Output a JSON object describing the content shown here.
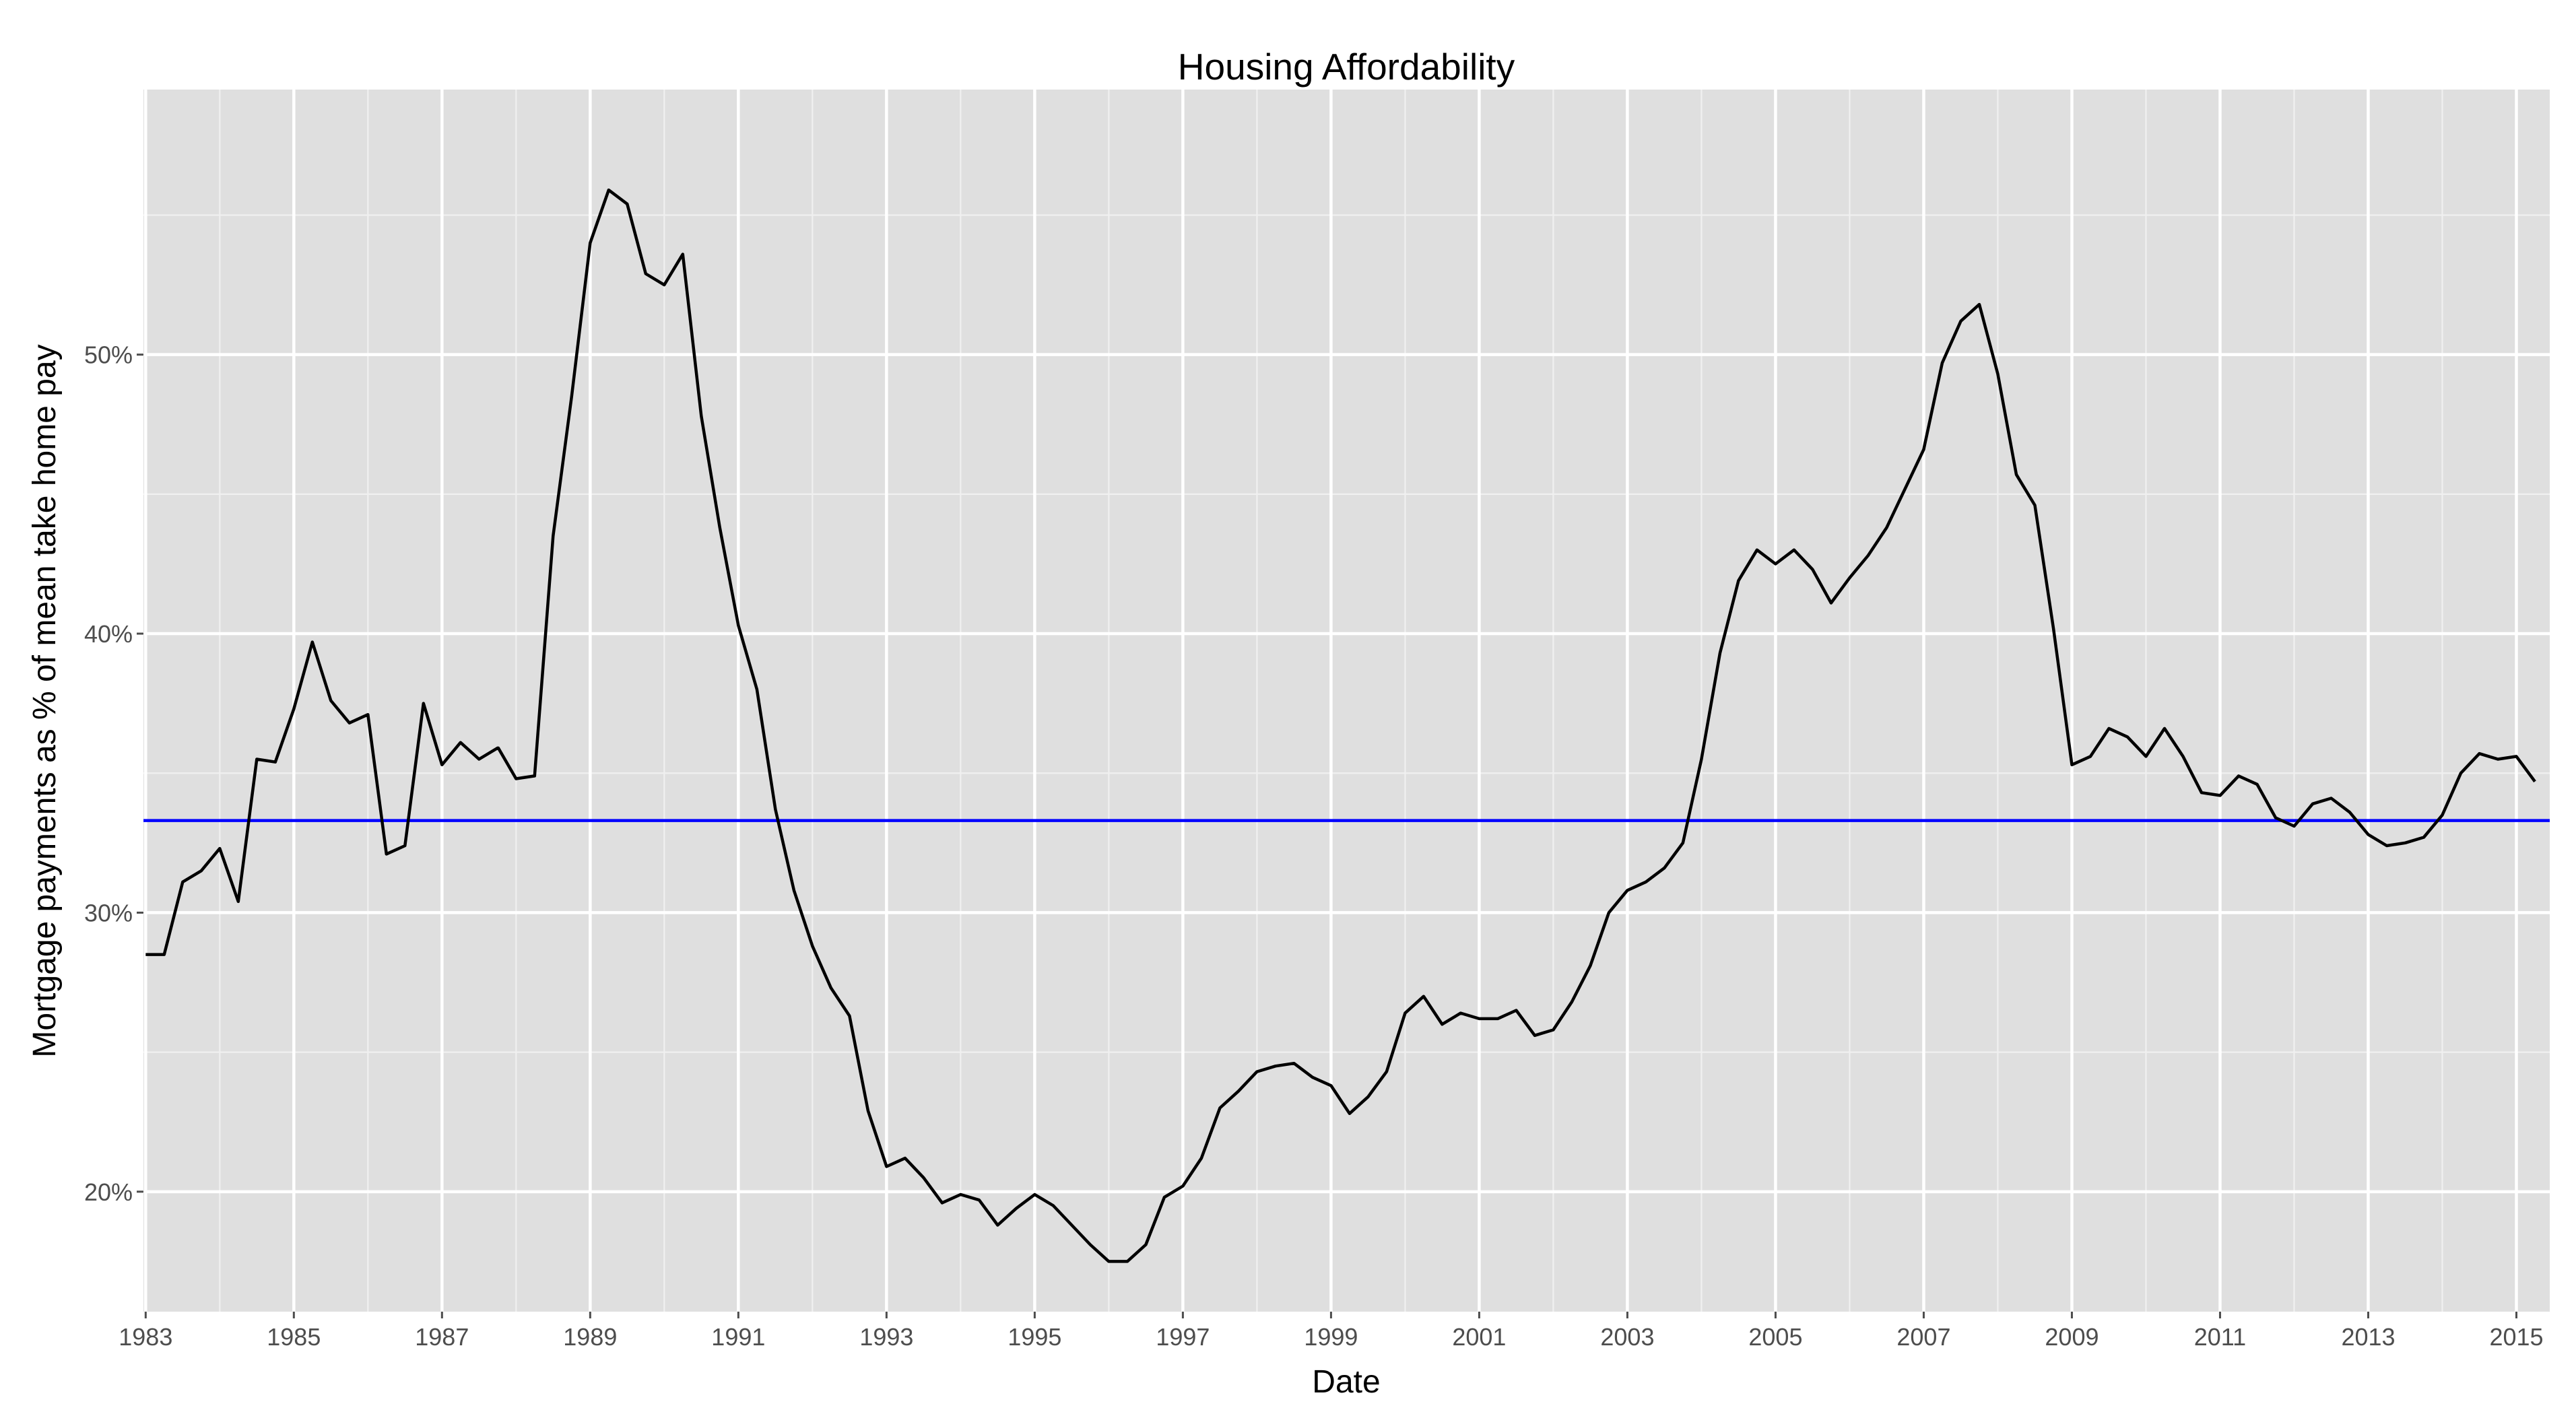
{
  "chart_data": {
    "type": "line",
    "title": "Housing Affordability",
    "xlabel": "Date",
    "ylabel": "Mortgage payments as % of mean take home pay",
    "xlim": [
      1982.97,
      2015.45
    ],
    "ylim": [
      15.7,
      59.5
    ],
    "x_ticks": [
      1983,
      1985,
      1987,
      1989,
      1991,
      1993,
      1995,
      1997,
      1999,
      2001,
      2003,
      2005,
      2007,
      2009,
      2011,
      2013,
      2015
    ],
    "y_ticks": [
      20,
      30,
      40,
      50
    ],
    "y_tick_labels": [
      "20%",
      "30%",
      "40%",
      "50%"
    ],
    "y_minor_ticks": [
      25,
      35,
      45,
      55
    ],
    "grid": true,
    "colors": {
      "panel_bg": "#dfdfdf",
      "series": "#000000",
      "reference_line": "#0000ff"
    },
    "reference_line": {
      "y": 33.3
    },
    "series": [
      {
        "x": [
          1983.0,
          1983.25,
          1983.5,
          1983.75,
          1984.0,
          1984.25,
          1984.5,
          1984.75,
          1985.0,
          1985.25,
          1985.5,
          1985.75,
          1986.0,
          1986.25,
          1986.5,
          1986.75,
          1987.0,
          1987.25,
          1987.5,
          1987.75,
          1987.76,
          1988.0,
          1988.25,
          1988.5,
          1988.75,
          1989.0,
          1989.25,
          1989.5,
          1989.75,
          1990.0,
          1990.25,
          1990.5,
          1990.75,
          1991.0,
          1991.25,
          1991.5,
          1991.75,
          1992.0,
          1992.25,
          1992.5,
          1992.75,
          1993.0,
          1993.25,
          1993.5,
          1993.75,
          1994.0,
          1994.25,
          1994.5,
          1994.75,
          1995.0,
          1995.25,
          1995.5,
          1995.75,
          1996.0,
          1996.25,
          1996.5,
          1996.75,
          1997.0,
          1997.25,
          1997.5,
          1997.75,
          1998.0,
          1998.25,
          1998.5,
          1998.75,
          1999.0,
          1999.25,
          1999.5,
          1999.75,
          2000.0,
          2000.25,
          2000.5,
          2000.75,
          2001.0,
          2001.25,
          2001.5,
          2001.75,
          2002.0,
          2002.25,
          2002.5,
          2002.75,
          2003.0,
          2003.25,
          2003.5,
          2003.75,
          2004.0,
          2004.25,
          2004.5,
          2004.75,
          2005.0,
          2005.25,
          2005.5,
          2005.75,
          2006.0,
          2006.25,
          2006.5,
          2006.75,
          2007.0,
          2007.25,
          2007.5,
          2007.75,
          2008.0,
          2008.25,
          2008.5,
          2008.75,
          2009.0,
          2009.25,
          2009.5,
          2009.75,
          2010.0,
          2010.25,
          2010.5,
          2010.75,
          2011.0,
          2011.25,
          2011.5,
          2011.75,
          2012.0,
          2012.25,
          2012.5,
          2012.75,
          2013.0,
          2013.25,
          2013.5,
          2013.75,
          2014.0,
          2014.25,
          2014.5,
          2014.75,
          2015.0,
          2015.25
        ],
        "values": [
          28.5,
          28.5,
          31.1,
          31.5,
          32.3,
          30.4,
          35.5,
          35.4,
          37.3,
          39.7,
          37.6,
          36.8,
          37.1,
          32.1,
          32.4,
          37.5,
          35.3,
          36.1,
          35.5,
          35.9,
          35.9,
          34.8,
          34.9,
          43.5,
          48.5,
          54.0,
          55.9,
          55.4,
          52.9,
          52.5,
          53.6,
          47.8,
          43.8,
          40.3,
          38.0,
          33.7,
          30.8,
          28.8,
          27.3,
          26.3,
          22.9,
          20.9,
          21.2,
          20.5,
          19.6,
          19.9,
          19.7,
          18.8,
          19.4,
          19.9,
          19.5,
          18.8,
          18.1,
          17.5,
          17.5,
          18.1,
          19.8,
          20.2,
          21.2,
          23.0,
          23.6,
          24.3,
          24.5,
          24.6,
          24.1,
          23.8,
          22.8,
          23.4,
          24.3,
          26.4,
          27.0,
          26.0,
          26.4,
          26.2,
          26.2,
          26.5,
          25.6,
          25.8,
          26.8,
          28.1,
          30.0,
          30.8,
          31.1,
          31.6,
          32.5,
          35.5,
          39.3,
          41.9,
          43.0,
          42.5,
          43.0,
          42.3,
          41.1,
          42.0,
          42.8,
          43.8,
          45.2,
          46.6,
          49.7,
          51.2,
          51.8,
          49.3,
          45.7,
          44.6,
          40.2,
          35.3,
          35.6,
          36.6,
          36.3,
          35.6,
          36.6,
          35.6,
          34.3,
          34.2,
          34.9,
          34.6,
          33.4,
          33.1,
          33.9,
          34.1,
          33.6,
          32.8,
          32.4,
          32.5,
          32.7,
          33.5,
          35.0,
          35.7,
          35.5,
          35.6,
          34.7
        ]
      }
    ]
  }
}
